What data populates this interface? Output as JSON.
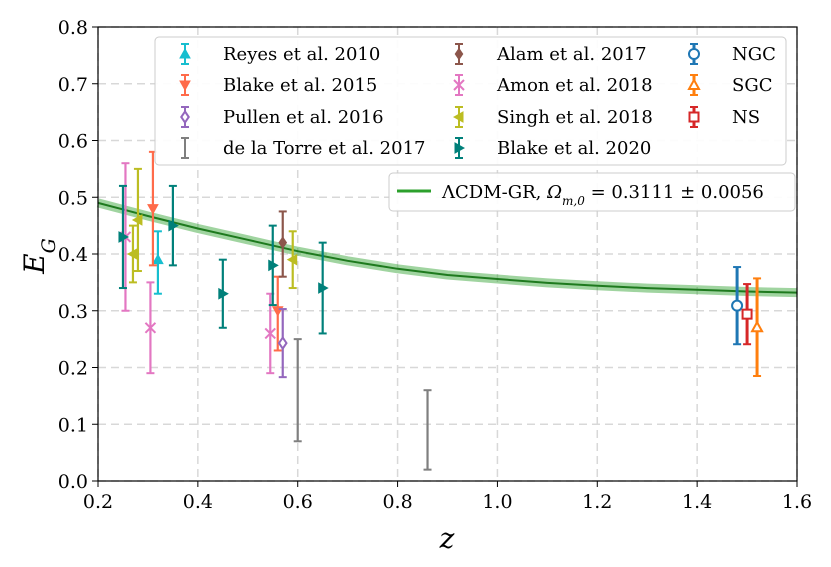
{
  "chart_data": {
    "type": "scatter",
    "xlabel": "z",
    "ylabel": "E_G",
    "xlim": [
      0.2,
      1.6
    ],
    "ylim": [
      0.0,
      0.8
    ],
    "xticks": [
      "0.2",
      "0.4",
      "0.6",
      "0.8",
      "1.0",
      "1.2",
      "1.4",
      "1.6"
    ],
    "yticks": [
      "0.0",
      "0.1",
      "0.2",
      "0.3",
      "0.4",
      "0.5",
      "0.6",
      "0.7",
      "0.8"
    ],
    "grid": true,
    "legend_placement": "top",
    "model": {
      "name": "ΛCDM-GR, Ω_{m,0} = 0.3111 ± 0.0056",
      "color": "#2ca02c",
      "curve": [
        {
          "x": 0.2,
          "y": 0.49
        },
        {
          "x": 0.3,
          "y": 0.467
        },
        {
          "x": 0.4,
          "y": 0.445
        },
        {
          "x": 0.5,
          "y": 0.425
        },
        {
          "x": 0.6,
          "y": 0.405
        },
        {
          "x": 0.7,
          "y": 0.388
        },
        {
          "x": 0.8,
          "y": 0.374
        },
        {
          "x": 0.9,
          "y": 0.363
        },
        {
          "x": 1.0,
          "y": 0.356
        },
        {
          "x": 1.1,
          "y": 0.349
        },
        {
          "x": 1.2,
          "y": 0.344
        },
        {
          "x": 1.3,
          "y": 0.34
        },
        {
          "x": 1.4,
          "y": 0.337
        },
        {
          "x": 1.5,
          "y": 0.334
        },
        {
          "x": 1.6,
          "y": 0.332
        }
      ]
    },
    "series": [
      {
        "name": "Reyes et al. 2010",
        "color": "#17becf",
        "marker": "triangle-up",
        "filled": true,
        "points": [
          {
            "x": 0.32,
            "y": 0.39,
            "lo": 0.33,
            "hi": 0.44
          }
        ]
      },
      {
        "name": "Blake et al. 2015",
        "color": "#ff6b4a",
        "marker": "triangle-down",
        "filled": true,
        "points": [
          {
            "x": 0.31,
            "y": 0.48,
            "lo": 0.38,
            "hi": 0.58
          },
          {
            "x": 0.56,
            "y": 0.3,
            "lo": 0.23,
            "hi": 0.36
          }
        ]
      },
      {
        "name": "Pullen et al. 2016",
        "color": "#9467bd",
        "marker": "diamond",
        "filled": false,
        "points": [
          {
            "x": 0.57,
            "y": 0.243,
            "lo": 0.183,
            "hi": 0.303
          }
        ]
      },
      {
        "name": "de la Torre et al. 2017",
        "color": "#7f7f7f",
        "marker": "none",
        "filled": true,
        "points": [
          {
            "x": 0.6,
            "y": 0.16,
            "lo": 0.07,
            "hi": 0.25
          },
          {
            "x": 0.86,
            "y": 0.09,
            "lo": 0.02,
            "hi": 0.16
          }
        ]
      },
      {
        "name": "Alam et al. 2017",
        "color": "#8c564b",
        "marker": "diamond",
        "filled": true,
        "points": [
          {
            "x": 0.57,
            "y": 0.42,
            "lo": 0.36,
            "hi": 0.475
          }
        ]
      },
      {
        "name": "Amon et al. 2018",
        "color": "#e377c2",
        "marker": "x",
        "filled": true,
        "points": [
          {
            "x": 0.255,
            "y": 0.43,
            "lo": 0.3,
            "hi": 0.56
          },
          {
            "x": 0.305,
            "y": 0.27,
            "lo": 0.19,
            "hi": 0.35
          },
          {
            "x": 0.545,
            "y": 0.26,
            "lo": 0.19,
            "hi": 0.33
          }
        ]
      },
      {
        "name": "Singh et al. 2018",
        "color": "#bcbd22",
        "marker": "triangle-left",
        "filled": true,
        "points": [
          {
            "x": 0.27,
            "y": 0.4,
            "lo": 0.35,
            "hi": 0.45
          },
          {
            "x": 0.28,
            "y": 0.46,
            "lo": 0.37,
            "hi": 0.55
          },
          {
            "x": 0.59,
            "y": 0.39,
            "lo": 0.34,
            "hi": 0.44
          }
        ]
      },
      {
        "name": "Blake et al. 2020",
        "color": "#00807a",
        "marker": "triangle-right",
        "filled": true,
        "points": [
          {
            "x": 0.25,
            "y": 0.43,
            "lo": 0.34,
            "hi": 0.52
          },
          {
            "x": 0.35,
            "y": 0.45,
            "lo": 0.38,
            "hi": 0.52
          },
          {
            "x": 0.45,
            "y": 0.33,
            "lo": 0.27,
            "hi": 0.39
          },
          {
            "x": 0.55,
            "y": 0.38,
            "lo": 0.31,
            "hi": 0.45
          },
          {
            "x": 0.65,
            "y": 0.34,
            "lo": 0.26,
            "hi": 0.42
          }
        ]
      },
      {
        "name": "NGC",
        "color": "#1f77b4",
        "marker": "circle",
        "filled": false,
        "points": [
          {
            "x": 1.48,
            "y": 0.309,
            "lo": 0.241,
            "hi": 0.377
          }
        ]
      },
      {
        "name": "SGC",
        "color": "#ff7f0e",
        "marker": "triangle-up",
        "filled": false,
        "points": [
          {
            "x": 1.52,
            "y": 0.271,
            "lo": 0.185,
            "hi": 0.357
          }
        ]
      },
      {
        "name": "NS",
        "color": "#d62728",
        "marker": "square",
        "filled": false,
        "points": [
          {
            "x": 1.5,
            "y": 0.294,
            "lo": 0.241,
            "hi": 0.347
          }
        ]
      }
    ]
  }
}
